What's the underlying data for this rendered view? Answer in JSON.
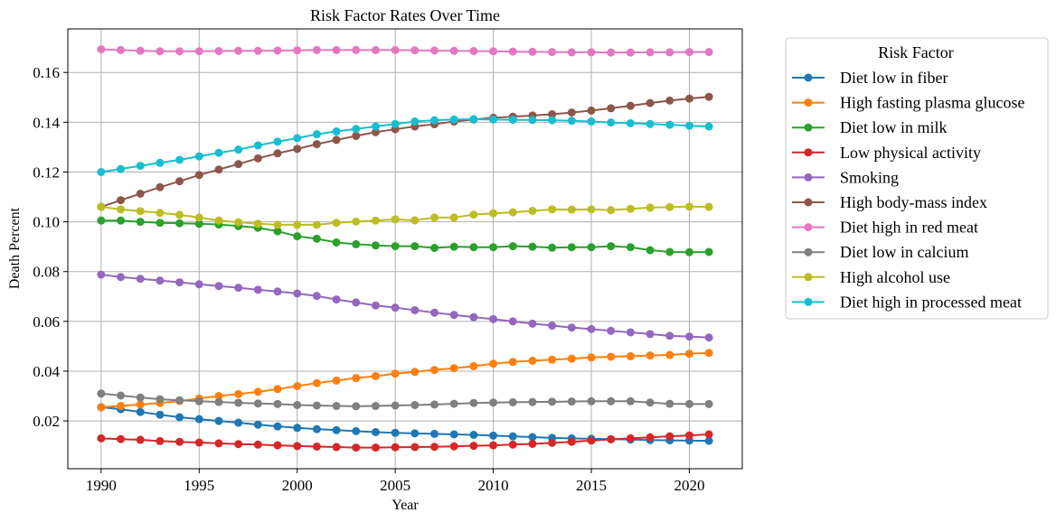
{
  "chart_data": {
    "type": "line",
    "title": "Risk Factor Rates Over Time",
    "xlabel": "Year",
    "ylabel": "Death Percent",
    "xlim": [
      1988.3,
      2022.7
    ],
    "ylim": [
      0.0008,
      0.1775
    ],
    "xticks": [
      1990,
      1995,
      2000,
      2005,
      2010,
      2015,
      2020
    ],
    "yticks": [
      0.02,
      0.04,
      0.06,
      0.08,
      0.1,
      0.12,
      0.14,
      0.16
    ],
    "ytick_labels": [
      "0.02",
      "0.04",
      "0.06",
      "0.08",
      "0.10",
      "0.12",
      "0.14",
      "0.16"
    ],
    "grid": true,
    "legend_title": "Risk Factor",
    "legend_position": "outside-right",
    "x": [
      1990,
      1991,
      1992,
      1993,
      1994,
      1995,
      1996,
      1997,
      1998,
      1999,
      2000,
      2001,
      2002,
      2003,
      2004,
      2005,
      2006,
      2007,
      2008,
      2009,
      2010,
      2011,
      2012,
      2013,
      2014,
      2015,
      2016,
      2017,
      2018,
      2019,
      2020,
      2021
    ],
    "series": [
      {
        "name": "Diet low in fiber",
        "color": "#1f77b4",
        "values": [
          0.0255,
          0.0247,
          0.0236,
          0.0225,
          0.0215,
          0.0207,
          0.02,
          0.0193,
          0.0185,
          0.0178,
          0.0172,
          0.0167,
          0.0163,
          0.0159,
          0.0155,
          0.0152,
          0.015,
          0.0148,
          0.0146,
          0.0144,
          0.0141,
          0.0138,
          0.0135,
          0.0132,
          0.013,
          0.0128,
          0.0127,
          0.0125,
          0.0123,
          0.0122,
          0.0121,
          0.012
        ]
      },
      {
        "name": "High fasting plasma glucose",
        "color": "#ff7f0e",
        "values": [
          0.0255,
          0.026,
          0.0266,
          0.0272,
          0.028,
          0.029,
          0.03,
          0.0308,
          0.0317,
          0.0328,
          0.034,
          0.0352,
          0.0362,
          0.0372,
          0.038,
          0.039,
          0.0397,
          0.0405,
          0.0412,
          0.042,
          0.043,
          0.0437,
          0.0442,
          0.0446,
          0.045,
          0.0455,
          0.0458,
          0.046,
          0.0463,
          0.0465,
          0.047,
          0.0473
        ]
      },
      {
        "name": "Diet low in milk",
        "color": "#2ca02c",
        "values": [
          0.1005,
          0.1005,
          0.1,
          0.0996,
          0.0994,
          0.0992,
          0.0989,
          0.0983,
          0.0976,
          0.0962,
          0.0942,
          0.0932,
          0.0917,
          0.091,
          0.0905,
          0.0902,
          0.0902,
          0.0895,
          0.09,
          0.0898,
          0.0898,
          0.0902,
          0.09,
          0.0896,
          0.0898,
          0.0898,
          0.0902,
          0.0898,
          0.0886,
          0.0879,
          0.0878,
          0.0879
        ]
      },
      {
        "name": "Low physical activity",
        "color": "#d62728",
        "values": [
          0.013,
          0.0127,
          0.0124,
          0.0119,
          0.0116,
          0.0113,
          0.011,
          0.0107,
          0.0105,
          0.0102,
          0.0099,
          0.0097,
          0.0095,
          0.0093,
          0.0093,
          0.0094,
          0.0095,
          0.0096,
          0.0098,
          0.01,
          0.0102,
          0.0105,
          0.0108,
          0.0112,
          0.0116,
          0.0121,
          0.0126,
          0.013,
          0.0134,
          0.0138,
          0.0142,
          0.0146
        ]
      },
      {
        "name": "Smoking",
        "color": "#9467bd",
        "values": [
          0.0788,
          0.0778,
          0.0771,
          0.0764,
          0.0757,
          0.0749,
          0.0742,
          0.0735,
          0.0727,
          0.072,
          0.0712,
          0.0702,
          0.0688,
          0.0676,
          0.0664,
          0.0655,
          0.0645,
          0.0635,
          0.0626,
          0.0617,
          0.0609,
          0.06,
          0.0591,
          0.0583,
          0.0575,
          0.0569,
          0.0562,
          0.0556,
          0.0549,
          0.0542,
          0.0539,
          0.0535
        ]
      },
      {
        "name": "High body-mass index",
        "color": "#8c564b",
        "values": [
          0.106,
          0.1087,
          0.1113,
          0.1139,
          0.1163,
          0.1188,
          0.121,
          0.1232,
          0.1255,
          0.1275,
          0.1293,
          0.1312,
          0.1329,
          0.1345,
          0.136,
          0.1372,
          0.1383,
          0.1392,
          0.1403,
          0.1411,
          0.1418,
          0.1422,
          0.1427,
          0.1432,
          0.1439,
          0.1447,
          0.1456,
          0.1466,
          0.1477,
          0.1487,
          0.1495,
          0.1502
        ]
      },
      {
        "name": "Diet high in red meat",
        "color": "#e377c2",
        "values": [
          0.1693,
          0.169,
          0.1687,
          0.1685,
          0.1685,
          0.1685,
          0.1686,
          0.1687,
          0.1687,
          0.1688,
          0.1689,
          0.169,
          0.169,
          0.169,
          0.169,
          0.169,
          0.1689,
          0.1688,
          0.1687,
          0.1686,
          0.1685,
          0.1684,
          0.1683,
          0.1682,
          0.1681,
          0.1681,
          0.168,
          0.168,
          0.1681,
          0.1681,
          0.1682,
          0.1682
        ]
      },
      {
        "name": "Diet low in calcium",
        "color": "#7f7f7f",
        "values": [
          0.031,
          0.0302,
          0.0294,
          0.0287,
          0.0283,
          0.0279,
          0.0276,
          0.0273,
          0.027,
          0.0268,
          0.0264,
          0.0262,
          0.026,
          0.0259,
          0.026,
          0.0262,
          0.0264,
          0.0266,
          0.0269,
          0.0272,
          0.0274,
          0.0275,
          0.0276,
          0.0277,
          0.0278,
          0.0279,
          0.0279,
          0.0279,
          0.0274,
          0.0269,
          0.0268,
          0.0268
        ]
      },
      {
        "name": "High alcohol use",
        "color": "#bcbd22",
        "values": [
          0.106,
          0.105,
          0.1043,
          0.1036,
          0.1028,
          0.1017,
          0.1005,
          0.0998,
          0.0992,
          0.0988,
          0.0988,
          0.0988,
          0.0996,
          0.1001,
          0.1005,
          0.101,
          0.1006,
          0.1017,
          0.1017,
          0.1029,
          0.1034,
          0.1038,
          0.1044,
          0.105,
          0.1049,
          0.105,
          0.1047,
          0.1052,
          0.1057,
          0.1059,
          0.1061,
          0.106
        ]
      },
      {
        "name": "Diet high in processed meat",
        "color": "#17becf",
        "values": [
          0.12,
          0.1212,
          0.1225,
          0.1237,
          0.1249,
          0.1263,
          0.1277,
          0.129,
          0.1307,
          0.1322,
          0.1336,
          0.1352,
          0.1363,
          0.1373,
          0.1383,
          0.1393,
          0.1403,
          0.1408,
          0.1411,
          0.1412,
          0.1411,
          0.141,
          0.1409,
          0.1408,
          0.1406,
          0.1403,
          0.1399,
          0.1396,
          0.1393,
          0.139,
          0.1386,
          0.1383
        ]
      }
    ]
  }
}
